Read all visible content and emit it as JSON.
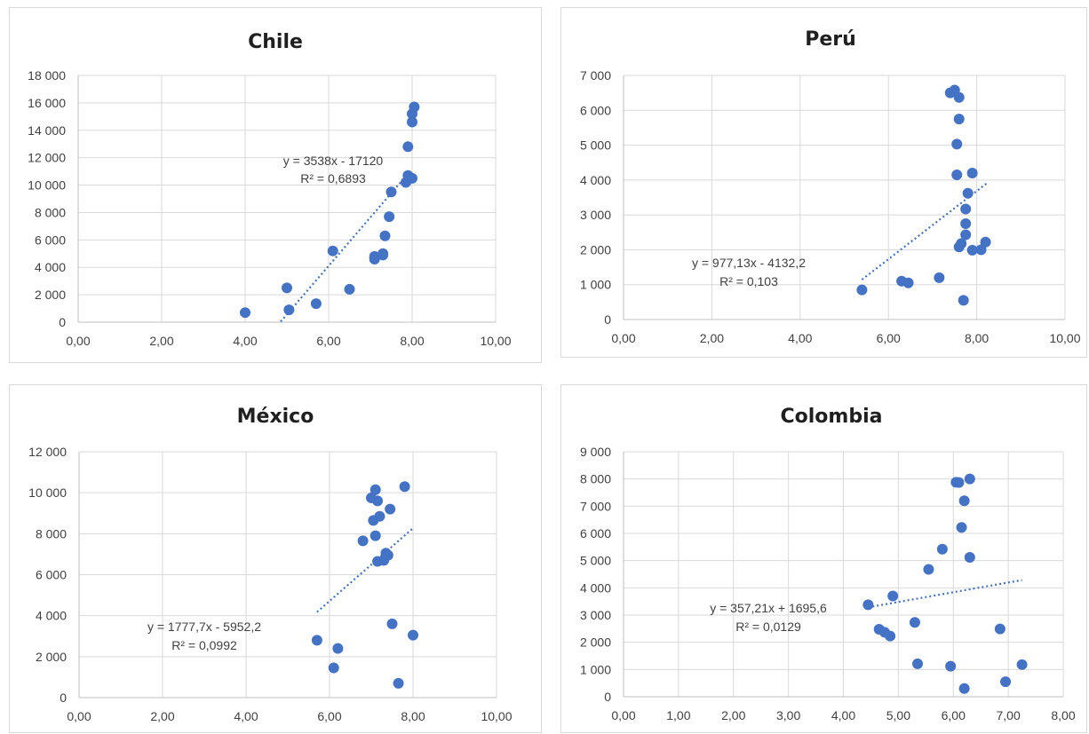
{
  "chart_data": [
    {
      "type": "scatter",
      "title": "Chile",
      "xlim": [
        0,
        10
      ],
      "xticks": [
        0,
        2,
        4,
        6,
        8,
        10
      ],
      "xtick_labels": [
        "0,00",
        "2,00",
        "4,00",
        "6,00",
        "8,00",
        "10,00"
      ],
      "ylim": [
        0,
        18000
      ],
      "yticks": [
        0,
        2000,
        4000,
        6000,
        8000,
        10000,
        12000,
        14000,
        16000,
        18000
      ],
      "ytick_labels": [
        "0",
        "2 000",
        "4 000",
        "6 000",
        "8 000",
        "10 000",
        "12 000",
        "14 000",
        "16 000",
        "18 000"
      ],
      "grid": true,
      "points": [
        [
          4.0,
          700
        ],
        [
          5.0,
          2500
        ],
        [
          5.05,
          900
        ],
        [
          5.7,
          1350
        ],
        [
          6.1,
          5200
        ],
        [
          6.5,
          2400
        ],
        [
          7.1,
          4600
        ],
        [
          7.1,
          4800
        ],
        [
          7.3,
          4900
        ],
        [
          7.3,
          5000
        ],
        [
          7.35,
          6300
        ],
        [
          7.45,
          7700
        ],
        [
          7.5,
          9500
        ],
        [
          7.85,
          10200
        ],
        [
          7.9,
          10700
        ],
        [
          7.9,
          12800
        ],
        [
          8.0,
          10500
        ],
        [
          8.0,
          14600
        ],
        [
          8.0,
          15200
        ],
        [
          8.05,
          15700
        ]
      ],
      "trendline": {
        "slope": 3538,
        "intercept": -17120,
        "x_range": [
          4.85,
          7.8
        ]
      },
      "equation": "y = 3538x - 17120",
      "r2": "R² = 0,6893"
    },
    {
      "type": "scatter",
      "title": "Perú",
      "xlim": [
        0,
        10
      ],
      "xticks": [
        0,
        2,
        4,
        6,
        8,
        10
      ],
      "xtick_labels": [
        "0,00",
        "2,00",
        "4,00",
        "6,00",
        "8,00",
        "10,00"
      ],
      "ylim": [
        0,
        7000
      ],
      "yticks": [
        0,
        1000,
        2000,
        3000,
        4000,
        5000,
        6000,
        7000
      ],
      "ytick_labels": [
        "0",
        "1 000",
        "2 000",
        "3 000",
        "4 000",
        "5 000",
        "6 000",
        "7 000"
      ],
      "grid": true,
      "points": [
        [
          5.4,
          850
        ],
        [
          6.3,
          1100
        ],
        [
          6.45,
          1050
        ],
        [
          7.15,
          1200
        ],
        [
          7.4,
          6500
        ],
        [
          7.5,
          6580
        ],
        [
          7.55,
          4150
        ],
        [
          7.55,
          5030
        ],
        [
          7.6,
          5750
        ],
        [
          7.6,
          6370
        ],
        [
          7.6,
          2080
        ],
        [
          7.65,
          2180
        ],
        [
          7.7,
          550
        ],
        [
          7.75,
          3170
        ],
        [
          7.75,
          2750
        ],
        [
          7.75,
          2430
        ],
        [
          7.8,
          3620
        ],
        [
          7.9,
          4200
        ],
        [
          7.9,
          1990
        ],
        [
          8.1,
          2000
        ],
        [
          8.2,
          2220
        ]
      ],
      "trendline": {
        "slope": 977.13,
        "intercept": -4132.2,
        "x_range": [
          5.4,
          8.25
        ]
      },
      "equation": "y = 977,13x - 4132,2",
      "r2": "R² = 0,103"
    },
    {
      "type": "scatter",
      "title": "México",
      "xlim": [
        0,
        10
      ],
      "xticks": [
        0,
        2,
        4,
        6,
        8,
        10
      ],
      "xtick_labels": [
        "0,00",
        "2,00",
        "4,00",
        "6,00",
        "8,00",
        "10,00"
      ],
      "ylim": [
        0,
        12000
      ],
      "yticks": [
        0,
        2000,
        4000,
        6000,
        8000,
        10000,
        12000
      ],
      "ytick_labels": [
        "0",
        "2 000",
        "4 000",
        "6 000",
        "8 000",
        "10 000",
        "12 000"
      ],
      "grid": true,
      "points": [
        [
          5.7,
          2800
        ],
        [
          6.1,
          1450
        ],
        [
          6.2,
          2400
        ],
        [
          6.8,
          7650
        ],
        [
          7.0,
          9750
        ],
        [
          7.05,
          8650
        ],
        [
          7.1,
          7900
        ],
        [
          7.1,
          10150
        ],
        [
          7.15,
          9600
        ],
        [
          7.15,
          6650
        ],
        [
          7.2,
          8850
        ],
        [
          7.3,
          6700
        ],
        [
          7.35,
          7050
        ],
        [
          7.4,
          6950
        ],
        [
          7.45,
          9200
        ],
        [
          7.5,
          3600
        ],
        [
          7.65,
          700
        ],
        [
          7.8,
          10300
        ],
        [
          8.0,
          3050
        ]
      ],
      "trendline": {
        "slope": 1777.7,
        "intercept": -5952.2,
        "x_range": [
          5.7,
          8.0
        ]
      },
      "equation": "y = 1777,7x - 5952,2",
      "r2": "R² = 0,0992"
    },
    {
      "type": "scatter",
      "title": "Colombia",
      "xlim": [
        0,
        8
      ],
      "xticks": [
        0,
        1,
        2,
        3,
        4,
        5,
        6,
        7,
        8
      ],
      "xtick_labels": [
        "0,00",
        "1,00",
        "2,00",
        "3,00",
        "4,00",
        "5,00",
        "6,00",
        "7,00",
        "8,00"
      ],
      "ylim": [
        0,
        9000
      ],
      "yticks": [
        0,
        1000,
        2000,
        3000,
        4000,
        5000,
        6000,
        7000,
        8000,
        9000
      ],
      "ytick_labels": [
        "0",
        "1 000",
        "2 000",
        "3 000",
        "4 000",
        "5 000",
        "6 000",
        "7 000",
        "8 000",
        "9 000"
      ],
      "grid": true,
      "points": [
        [
          4.45,
          3380
        ],
        [
          4.65,
          2480
        ],
        [
          4.75,
          2370
        ],
        [
          4.85,
          2230
        ],
        [
          4.9,
          3700
        ],
        [
          5.3,
          2730
        ],
        [
          5.35,
          1210
        ],
        [
          5.55,
          4680
        ],
        [
          5.8,
          5420
        ],
        [
          5.95,
          1120
        ],
        [
          6.05,
          7880
        ],
        [
          6.1,
          7870
        ],
        [
          6.15,
          6220
        ],
        [
          6.2,
          7200
        ],
        [
          6.2,
          300
        ],
        [
          6.3,
          8000
        ],
        [
          6.3,
          5120
        ],
        [
          6.85,
          2490
        ],
        [
          6.95,
          550
        ],
        [
          7.25,
          1180
        ]
      ],
      "trendline": {
        "slope": 357.21,
        "intercept": 1695.6,
        "x_range": [
          4.45,
          7.25
        ]
      },
      "equation": "y = 357,21x + 1695,6",
      "r2": "R² = 0,0129"
    }
  ],
  "colors": {
    "marker": "#4472c4",
    "trend": "#4472c4",
    "grid": "#d9d9d9"
  }
}
